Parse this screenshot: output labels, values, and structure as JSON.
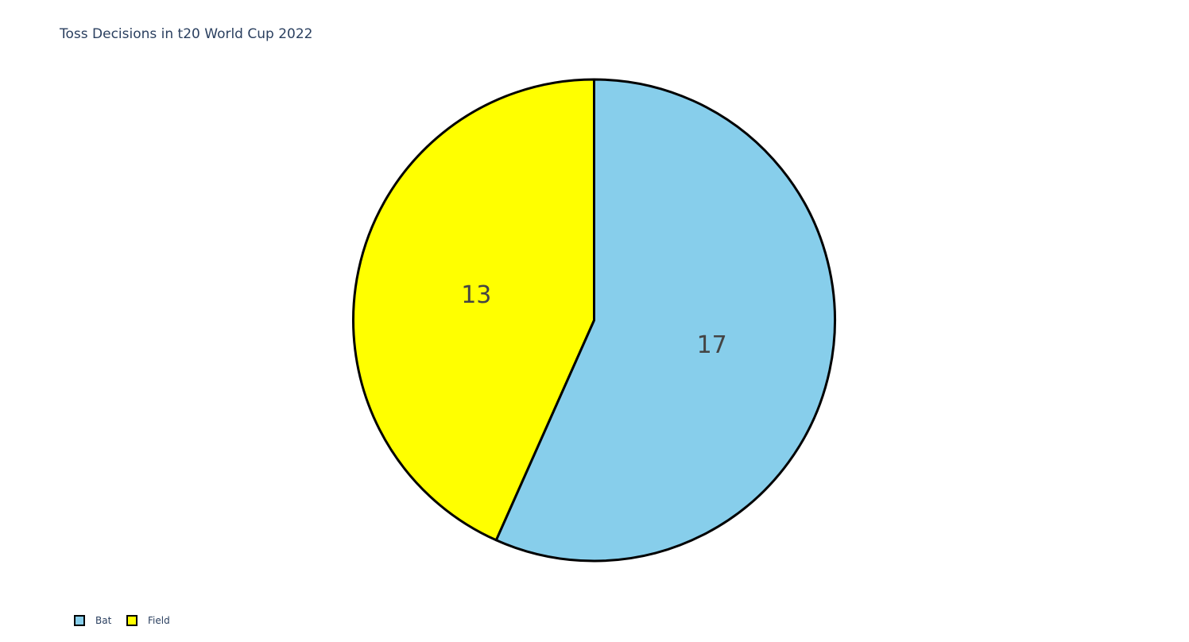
{
  "chart_data": {
    "type": "pie",
    "title": "Toss Decisions in t20 World Cup 2022",
    "labels": [
      "Bat",
      "Field"
    ],
    "values": [
      17,
      13
    ],
    "colors": [
      "#87ceeb",
      "#ffff00"
    ],
    "outline_color": "#000000",
    "text_info": "value",
    "direction": "clockwise",
    "start_angle_deg": 90,
    "legend": {
      "placement": "bottom-left",
      "orientation": "horizontal"
    }
  }
}
